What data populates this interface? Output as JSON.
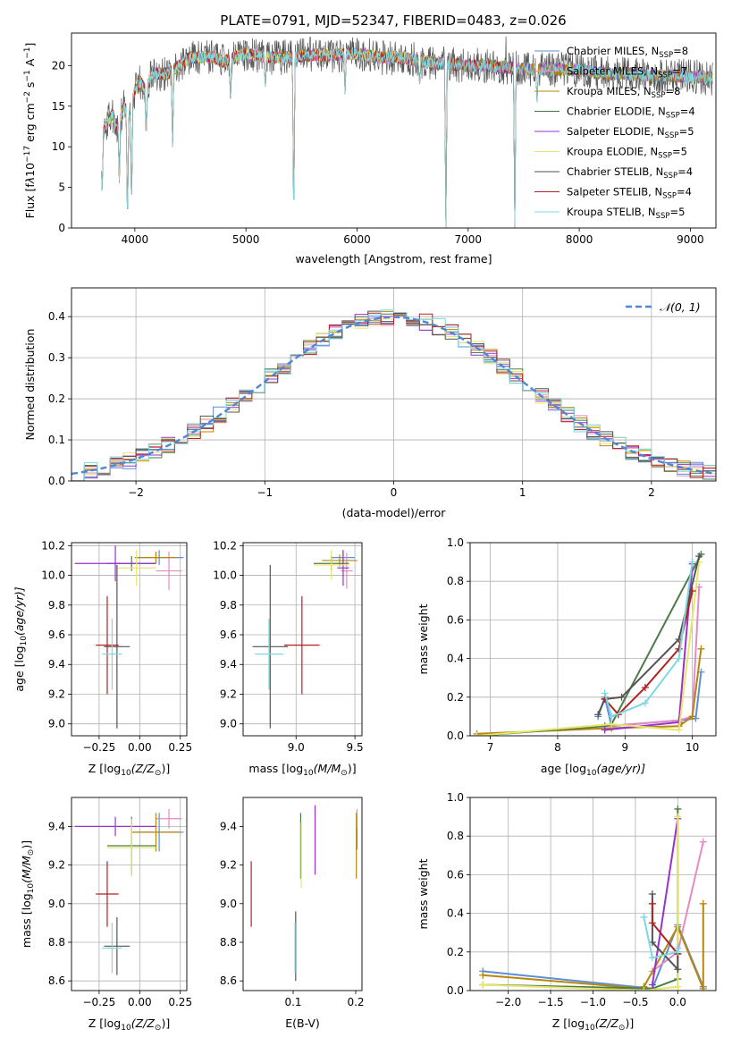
{
  "figure_title": "PLATE=0791, MJD=52347, FIBERID=0483, z=0.026",
  "palette": [
    "#5b8fd8",
    "#e58ac6",
    "#b8860b",
    "#4a7d4a",
    "#9932cc",
    "#e6e66a",
    "#555555",
    "#b22222",
    "#7fd8e0"
  ],
  "chart_data": [
    {
      "type": "line",
      "title": "PLATE=0791, MJD=52347, FIBERID=0483, z=0.026",
      "xlabel": "wavelength [Angstrom, rest frame]",
      "ylabel_parts": [
        "Flux [f",
        "λ",
        "10",
        "−17",
        " erg cm",
        "−2",
        " s",
        "−1",
        " A",
        "−1",
        "]"
      ],
      "xlim": [
        3430,
        9230
      ],
      "ylim": [
        0,
        24
      ],
      "xticks": [
        4000,
        5000,
        6000,
        7000,
        8000,
        9000
      ],
      "yticks": [
        0,
        5,
        10,
        15,
        20
      ],
      "grid": false,
      "legend_position": "upper right",
      "series": [
        {
          "name": "Chabrier MILES, N",
          "sub": "SSP",
          "count": "=8"
        },
        {
          "name": "Salpeter MILES, N",
          "sub": "SSP",
          "count": "=7"
        },
        {
          "name": "Kroupa MILES, N",
          "sub": "SSP",
          "count": "=8"
        },
        {
          "name": "Chabrier ELODIE, N",
          "sub": "SSP",
          "count": "=4"
        },
        {
          "name": "Salpeter ELODIE, N",
          "sub": "SSP",
          "count": "=5"
        },
        {
          "name": "Kroupa ELODIE, N",
          "sub": "SSP",
          "count": "=5"
        },
        {
          "name": "Chabrier STELIB, N",
          "sub": "SSP",
          "count": "=4"
        },
        {
          "name": "Salpeter STELIB, N",
          "sub": "SSP",
          "count": "=4"
        },
        {
          "name": "Kroupa STELIB, N",
          "sub": "SSP",
          "count": "=5"
        }
      ],
      "continuum": {
        "x": [
          3700,
          3750,
          3800,
          3850,
          3900,
          3950,
          4000,
          4050,
          4100,
          4150,
          4200,
          4300,
          4400,
          4500,
          4600,
          4700,
          4800,
          4900,
          5000,
          5200,
          5400,
          5600,
          5800,
          6000,
          6200,
          6400,
          6600,
          6800,
          7000,
          7200,
          7400,
          7600,
          7800,
          8000,
          8200,
          8400,
          8600,
          8800,
          9000,
          9200
        ],
        "y": [
          11,
          13,
          14,
          12,
          15,
          14,
          17,
          18,
          17,
          19,
          19,
          19,
          20,
          21,
          21,
          21,
          20.5,
          21,
          21.5,
          21,
          21,
          21.3,
          21.3,
          21.5,
          21,
          21,
          20.5,
          20.2,
          20,
          20,
          19.7,
          19.6,
          19.5,
          19.5,
          19,
          19,
          18.8,
          18.7,
          18.6,
          18.5
        ]
      },
      "dips": [
        {
          "x": 3705,
          "to": 4.0
        },
        {
          "x": 3860,
          "to": 5.5
        },
        {
          "x": 3934,
          "to": 0.0
        },
        {
          "x": 3970,
          "to": 2.0
        },
        {
          "x": 4102,
          "to": 11.0
        },
        {
          "x": 4340,
          "to": 10.0
        },
        {
          "x": 4861,
          "to": 15.5
        },
        {
          "x": 5175,
          "to": 17.0
        },
        {
          "x": 5430,
          "to": 0.0
        },
        {
          "x": 5892,
          "to": 16.5
        },
        {
          "x": 6563,
          "to": 17.5
        },
        {
          "x": 6800,
          "to": 0.0
        },
        {
          "x": 7420,
          "to": 0.0
        },
        {
          "x": 7620,
          "to": 15.5
        }
      ],
      "spikes": [
        {
          "x": 5577,
          "to": 23.5
        },
        {
          "x": 6300,
          "to": 23.0
        },
        {
          "x": 7340,
          "to": 23.6
        }
      ]
    },
    {
      "type": "bar",
      "title": "",
      "xlabel": "(data-model)/error",
      "ylabel": "Normed distribution",
      "xlim": [
        -2.5,
        2.5
      ],
      "ylim": [
        0,
        0.47
      ],
      "xticks": [
        -2,
        -1,
        0,
        1,
        2
      ],
      "xtick_labels": [
        "−2",
        "−1",
        "0",
        "1",
        "2"
      ],
      "yticks": [
        0.0,
        0.1,
        0.2,
        0.3,
        0.4
      ],
      "ytick_labels": [
        "0.0",
        "0.1",
        "0.2",
        "0.3",
        "0.4"
      ],
      "grid": true,
      "legend_position": "upper right",
      "legend_label": "𝒩(0, 1)",
      "bin_width": 0.1,
      "reference_curve": {
        "name": "N(0,1)",
        "mean": 0,
        "sigma": 1
      }
    },
    {
      "type": "scatter",
      "title": "",
      "xlabel": "Z [log",
      "xlabel_parts": [
        "Z [log",
        "10",
        "(Z/Z",
        "⊙",
        ")]"
      ],
      "ylabel_parts": [
        "age  [log",
        "10",
        "(age/yr)]"
      ],
      "xlim": [
        -0.42,
        0.29
      ],
      "ylim": [
        8.92,
        10.22
      ],
      "xticks": [
        -0.25,
        0.0,
        0.25
      ],
      "xtick_labels": [
        "−0.25",
        "0.00",
        "0.25"
      ],
      "yticks": [
        9.0,
        9.2,
        9.4,
        9.6,
        9.8,
        10.0,
        10.2
      ],
      "ytick_labels": [
        "9.0",
        "9.2",
        "9.4",
        "9.6",
        "9.8",
        "10.0",
        "10.2"
      ],
      "grid": true,
      "points": [
        {
          "x": 0.12,
          "y": 10.12,
          "xerr": 0.15,
          "yerr": 0.05,
          "c": 0
        },
        {
          "x": 0.18,
          "y": 10.03,
          "xerr": 0.08,
          "yerr": 0.13,
          "c": 1
        },
        {
          "x": 0.1,
          "y": 10.12,
          "xerr": 0.13,
          "yerr": 0.04,
          "c": 2
        },
        {
          "x": -0.05,
          "y": 10.08,
          "xerr": 0.15,
          "yerr": 0.05,
          "c": 3
        },
        {
          "x": -0.15,
          "y": 10.08,
          "xerr": 0.25,
          "yerr": 0.12,
          "c": 4
        },
        {
          "x": -0.02,
          "y": 10.05,
          "xerr": 0.12,
          "yerr": 0.12,
          "c": 5
        },
        {
          "x": -0.14,
          "y": 9.52,
          "xerr": 0.08,
          "yerr": 0.55,
          "c": 6
        },
        {
          "x": -0.2,
          "y": 9.53,
          "xerr": 0.07,
          "yerr": 0.33,
          "c": 7
        },
        {
          "x": -0.17,
          "y": 9.47,
          "xerr": 0.06,
          "yerr": 0.24,
          "c": 8
        }
      ]
    },
    {
      "type": "scatter",
      "title": "",
      "xlabel_parts": [
        "mass [log",
        "10",
        "(M/M",
        "⊙",
        ")]"
      ],
      "xlim": [
        8.55,
        9.56
      ],
      "ylim": [
        8.92,
        10.22
      ],
      "xticks": [
        9.0,
        9.5
      ],
      "xtick_labels": [
        "9.0",
        "9.5"
      ],
      "yticks": [
        9.0,
        9.2,
        9.4,
        9.6,
        9.8,
        10.0,
        10.2
      ],
      "ytick_labels": [
        "9.0",
        "9.2",
        "9.4",
        "9.6",
        "9.8",
        "10.0",
        "10.2"
      ],
      "grid": true,
      "points": [
        {
          "x": 9.4,
          "y": 10.12,
          "xerr": 0.1,
          "yerr": 0.05,
          "c": 0
        },
        {
          "x": 9.43,
          "y": 10.03,
          "xerr": 0.05,
          "yerr": 0.12,
          "c": 1
        },
        {
          "x": 9.37,
          "y": 10.1,
          "xerr": 0.15,
          "yerr": 0.04,
          "c": 2
        },
        {
          "x": 9.3,
          "y": 10.08,
          "xerr": 0.15,
          "yerr": 0.05,
          "c": 3
        },
        {
          "x": 9.4,
          "y": 10.05,
          "xerr": 0.05,
          "yerr": 0.12,
          "c": 4
        },
        {
          "x": 9.3,
          "y": 10.07,
          "xerr": 0.15,
          "yerr": 0.1,
          "c": 5
        },
        {
          "x": 8.78,
          "y": 9.52,
          "xerr": 0.15,
          "yerr": 0.55,
          "c": 6
        },
        {
          "x": 9.05,
          "y": 9.53,
          "xerr": 0.15,
          "yerr": 0.33,
          "c": 7
        },
        {
          "x": 8.77,
          "y": 9.47,
          "xerr": 0.12,
          "yerr": 0.24,
          "c": 8
        }
      ]
    },
    {
      "type": "line",
      "title": "",
      "xlabel_parts": [
        "age  [log",
        "10",
        "(age/yr)]"
      ],
      "ylabel": "mass weight",
      "xlim": [
        6.7,
        10.35
      ],
      "ylim": [
        0,
        1.0
      ],
      "xticks": [
        7,
        8,
        9,
        10
      ],
      "yticks": [
        0.0,
        0.2,
        0.4,
        0.6,
        0.8,
        1.0
      ],
      "ytick_labels": [
        "0.0",
        "0.2",
        "0.4",
        "0.6",
        "0.8",
        "1.0"
      ],
      "grid": true,
      "series": [
        {
          "c": 0,
          "x": [
            8.6,
            8.7,
            8.8,
            9.8,
            10.05,
            10.13
          ],
          "y": [
            0.1,
            0.2,
            0.05,
            0.08,
            0.09,
            0.33
          ]
        },
        {
          "c": 1,
          "x": [
            8.7,
            9.8,
            10.0,
            10.1
          ],
          "y": [
            0.05,
            0.08,
            0.1,
            0.77
          ]
        },
        {
          "c": 2,
          "x": [
            6.8,
            8.8,
            9.8,
            10.0,
            10.13
          ],
          "y": [
            0.01,
            0.04,
            0.05,
            0.1,
            0.45
          ]
        },
        {
          "c": 3,
          "x": [
            6.8,
            8.7,
            8.8,
            10.13
          ],
          "y": [
            0.0,
            0.05,
            0.06,
            0.94
          ]
        },
        {
          "c": 4,
          "x": [
            8.7,
            9.8,
            10.0
          ],
          "y": [
            0.03,
            0.07,
            0.89
          ]
        },
        {
          "c": 5,
          "x": [
            6.8,
            8.8,
            9.8,
            10.1
          ],
          "y": [
            0.0,
            0.06,
            0.03,
            0.9
          ]
        },
        {
          "c": 6,
          "x": [
            8.6,
            8.7,
            8.95,
            9.8,
            10.1
          ],
          "y": [
            0.11,
            0.19,
            0.2,
            0.5,
            0.93
          ]
        },
        {
          "c": 7,
          "x": [
            8.7,
            8.9,
            9.3,
            9.8,
            10.0
          ],
          "y": [
            0.19,
            0.11,
            0.25,
            0.45,
            0.75
          ]
        },
        {
          "c": 8,
          "x": [
            8.7,
            8.8,
            9.3,
            9.8,
            10.0
          ],
          "y": [
            0.22,
            0.1,
            0.17,
            0.4,
            0.9
          ]
        }
      ]
    },
    {
      "type": "scatter",
      "title": "",
      "xlabel_parts": [
        "Z [log",
        "10",
        "(Z/Z",
        "⊙",
        ")]"
      ],
      "ylabel_parts": [
        "mass [log",
        "10",
        "(M/M",
        "⊙",
        ")]"
      ],
      "xlim": [
        -0.42,
        0.29
      ],
      "ylim": [
        8.55,
        9.55
      ],
      "xticks": [
        -0.25,
        0.0,
        0.25
      ],
      "xtick_labels": [
        "−0.25",
        "0.00",
        "0.25"
      ],
      "yticks": [
        8.6,
        8.8,
        9.0,
        9.2,
        9.4
      ],
      "ytick_labels": [
        "8.6",
        "8.8",
        "9.0",
        "9.2",
        "9.4"
      ],
      "grid": true,
      "points": [
        {
          "x": 0.12,
          "y": 9.37,
          "xerr": 0.15,
          "yerr": 0.1,
          "c": 0
        },
        {
          "x": 0.18,
          "y": 9.44,
          "xerr": 0.08,
          "yerr": 0.05,
          "c": 1
        },
        {
          "x": 0.1,
          "y": 9.37,
          "xerr": 0.15,
          "yerr": 0.1,
          "c": 2
        },
        {
          "x": -0.05,
          "y": 9.3,
          "xerr": 0.15,
          "yerr": 0.15,
          "c": 3
        },
        {
          "x": -0.15,
          "y": 9.4,
          "xerr": 0.25,
          "yerr": 0.05,
          "c": 4
        },
        {
          "x": -0.05,
          "y": 9.29,
          "xerr": 0.15,
          "yerr": 0.15,
          "c": 5
        },
        {
          "x": -0.14,
          "y": 8.78,
          "xerr": 0.08,
          "yerr": 0.15,
          "c": 6
        },
        {
          "x": -0.2,
          "y": 9.05,
          "xerr": 0.07,
          "yerr": 0.17,
          "c": 7
        },
        {
          "x": -0.17,
          "y": 8.77,
          "xerr": 0.06,
          "yerr": 0.13,
          "c": 8
        }
      ]
    },
    {
      "type": "scatter",
      "title": "",
      "xlabel": "E(B-V)",
      "xlim": [
        0.02,
        0.21
      ],
      "ylim": [
        8.55,
        9.55
      ],
      "xticks": [
        0.1,
        0.2
      ],
      "xtick_labels": [
        "0.1",
        "0.2"
      ],
      "yticks": [
        8.6,
        8.8,
        9.0,
        9.2,
        9.4
      ],
      "ytick_labels": [
        "8.6",
        "8.8",
        "9.0",
        "9.2",
        "9.4"
      ],
      "grid": false,
      "points": [
        {
          "x": 0.202,
          "y": 9.38,
          "xerr": 0,
          "yerr": 0.1,
          "c": 0
        },
        {
          "x": 0.202,
          "y": 9.44,
          "xerr": 0,
          "yerr": 0.05,
          "c": 1
        },
        {
          "x": 0.201,
          "y": 9.3,
          "xerr": 0,
          "yerr": 0.17,
          "c": 2
        },
        {
          "x": 0.112,
          "y": 9.3,
          "xerr": 0,
          "yerr": 0.17,
          "c": 3
        },
        {
          "x": 0.135,
          "y": 9.33,
          "xerr": 0,
          "yerr": 0.18,
          "c": 4
        },
        {
          "x": 0.113,
          "y": 9.25,
          "xerr": 0,
          "yerr": 0.17,
          "c": 5
        },
        {
          "x": 0.104,
          "y": 8.78,
          "xerr": 0,
          "yerr": 0.18,
          "c": 6
        },
        {
          "x": 0.033,
          "y": 9.05,
          "xerr": 0,
          "yerr": 0.17,
          "c": 7
        },
        {
          "x": 0.103,
          "y": 8.77,
          "xerr": 0,
          "yerr": 0.13,
          "c": 8
        }
      ]
    },
    {
      "type": "line",
      "title": "",
      "xlabel_parts": [
        "Z [log",
        "10",
        "(Z/Z",
        "⊙",
        ")]"
      ],
      "ylabel": "mass weight",
      "xlim": [
        -2.45,
        0.45
      ],
      "ylim": [
        0,
        1.0
      ],
      "xticks": [
        -2.0,
        -1.5,
        -1.0,
        -0.5,
        0.0
      ],
      "xtick_labels": [
        "−2.0",
        "−1.5",
        "−1.0",
        "−0.5",
        "0.0"
      ],
      "yticks": [
        0.0,
        0.2,
        0.4,
        0.6,
        0.8,
        1.0
      ],
      "ytick_labels": [
        "0.0",
        "0.2",
        "0.4",
        "0.6",
        "0.8",
        "1.0"
      ],
      "grid": true,
      "series": [
        {
          "c": 0,
          "x": [
            -2.3,
            -0.3,
            0.0,
            0.3
          ],
          "y": [
            0.1,
            0.01,
            0.34,
            0.02
          ]
        },
        {
          "c": 1,
          "x": [
            -0.3,
            0.0,
            0.3
          ],
          "y": [
            0.1,
            0.2,
            0.77
          ]
        },
        {
          "c": 2,
          "x": [
            -2.3,
            -0.4,
            -0.4,
            0.0,
            0.3,
            0.3
          ],
          "y": [
            0.08,
            0.01,
            0.02,
            0.33,
            0.01,
            0.45
          ]
        },
        {
          "c": 3,
          "x": [
            -2.3,
            -0.3,
            0.0,
            0.0
          ],
          "y": [
            0.03,
            0.01,
            0.06,
            0.94
          ]
        },
        {
          "c": 4,
          "x": [
            -0.3,
            0.0
          ],
          "y": [
            0.03,
            0.89
          ]
        },
        {
          "c": 5,
          "x": [
            -2.3,
            -0.4,
            0.0,
            0.0
          ],
          "y": [
            0.03,
            0.0,
            0.02,
            0.9
          ]
        },
        {
          "c": 6,
          "x": [
            -0.3,
            -0.3,
            0.0,
            0.0
          ],
          "y": [
            0.5,
            0.25,
            0.11,
            0.19
          ]
        },
        {
          "c": 7,
          "x": [
            -0.3,
            -0.3,
            0.0
          ],
          "y": [
            0.45,
            0.35,
            0.19
          ]
        },
        {
          "c": 8,
          "x": [
            -0.4,
            -0.3,
            0.0,
            0.0
          ],
          "y": [
            0.38,
            0.17,
            0.2,
            0.22
          ]
        }
      ]
    }
  ]
}
